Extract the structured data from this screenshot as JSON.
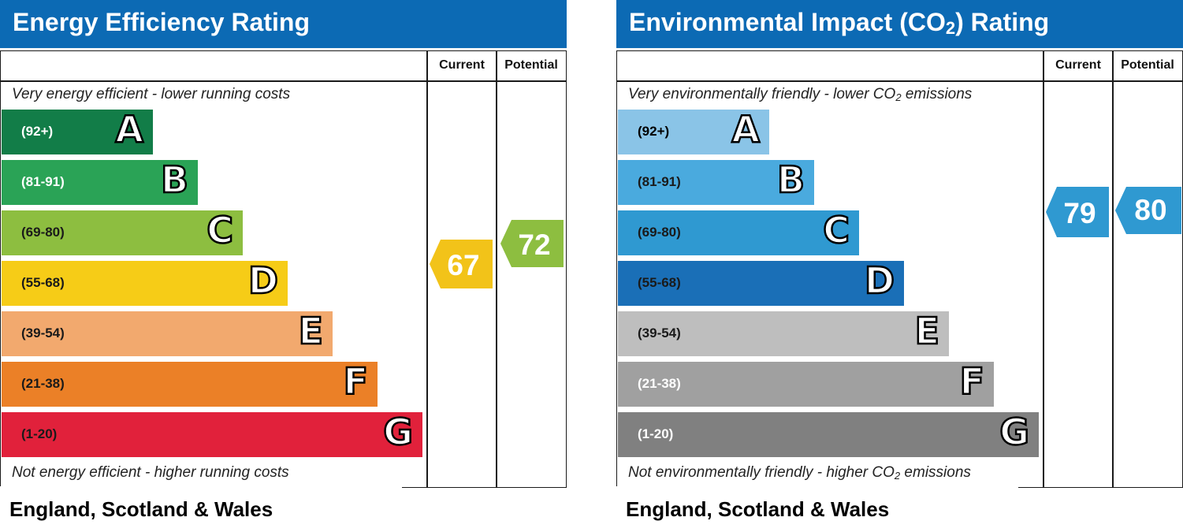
{
  "charts": [
    {
      "id": "energy",
      "title": "Energy Efficiency Rating",
      "title_sub": "",
      "title_end": "",
      "col_current": "Current",
      "col_potential": "Potential",
      "top_caption": {
        "text": "Very energy efficient - lower running costs",
        "sub": "",
        "end": ""
      },
      "bottom_caption": {
        "text": "Not energy efficient - higher running costs",
        "sub": "",
        "end": ""
      },
      "region": "England, Scotland & Wales",
      "current": {
        "value": "67",
        "color": "#f2c319"
      },
      "potential": {
        "value": "72",
        "color": "#8dbe40"
      },
      "bands": [
        {
          "range": "(92+)",
          "letter": "A",
          "min": 92,
          "max": 100,
          "color": "#127d48",
          "text_color": "#ffffff"
        },
        {
          "range": "(81-91)",
          "letter": "B",
          "min": 81,
          "max": 91,
          "color": "#2aa356",
          "text_color": "#ffffff"
        },
        {
          "range": "(69-80)",
          "letter": "C",
          "min": 69,
          "max": 80,
          "color": "#8dbe40",
          "text_color": "#1a1a1a"
        },
        {
          "range": "(55-68)",
          "letter": "D",
          "min": 55,
          "max": 68,
          "color": "#f6cc17",
          "text_color": "#1a1a1a"
        },
        {
          "range": "(39-54)",
          "letter": "E",
          "min": 39,
          "max": 54,
          "color": "#f2a96e",
          "text_color": "#1a1a1a"
        },
        {
          "range": "(21-38)",
          "letter": "F",
          "min": 21,
          "max": 38,
          "color": "#eb8027",
          "text_color": "#1a1a1a"
        },
        {
          "range": "(1-20)",
          "letter": "G",
          "min": 1,
          "max": 20,
          "color": "#e1213b",
          "text_color": "#1a1a1a"
        }
      ]
    },
    {
      "id": "env",
      "title": "Environmental Impact (CO",
      "title_sub": "2",
      "title_end": ") Rating",
      "col_current": "Current",
      "col_potential": "Potential",
      "top_caption": {
        "text": "Very environmentally friendly - lower CO",
        "sub": "2",
        "end": " emissions"
      },
      "bottom_caption": {
        "text": "Not environmentally friendly - higher CO",
        "sub": "2",
        "end": " emissions"
      },
      "region": "England, Scotland & Wales",
      "current": {
        "value": "79",
        "color": "#2f99d1"
      },
      "potential": {
        "value": "80",
        "color": "#2f99d1"
      },
      "bands": [
        {
          "range": "(92+)",
          "letter": "A",
          "min": 92,
          "max": 100,
          "color": "#8ac4e7",
          "text_color": "#000000"
        },
        {
          "range": "(81-91)",
          "letter": "B",
          "min": 81,
          "max": 91,
          "color": "#4aaade",
          "text_color": "#1a1a1a"
        },
        {
          "range": "(69-80)",
          "letter": "C",
          "min": 69,
          "max": 80,
          "color": "#2f99d1",
          "text_color": "#1a1a1a"
        },
        {
          "range": "(55-68)",
          "letter": "D",
          "min": 55,
          "max": 68,
          "color": "#1a6fb7",
          "text_color": "#1a1a1a"
        },
        {
          "range": "(39-54)",
          "letter": "E",
          "min": 39,
          "max": 54,
          "color": "#bebebe",
          "text_color": "#1a1a1a"
        },
        {
          "range": "(21-38)",
          "letter": "F",
          "min": 21,
          "max": 38,
          "color": "#a0a0a0",
          "text_color": "#ffffff"
        },
        {
          "range": "(1-20)",
          "letter": "G",
          "min": 1,
          "max": 20,
          "color": "#808080",
          "text_color": "#ffffff"
        }
      ]
    }
  ],
  "chart_data": [
    {
      "type": "bar",
      "title": "Energy Efficiency Rating",
      "categories": [
        "A",
        "B",
        "C",
        "D",
        "E",
        "F",
        "G"
      ],
      "ranges": [
        "(92+)",
        "(81-91)",
        "(69-80)",
        "(55-68)",
        "(39-54)",
        "(21-38)",
        "(1-20)"
      ],
      "current": 67,
      "potential": 72
    },
    {
      "type": "bar",
      "title": "Environmental Impact (CO2) Rating",
      "categories": [
        "A",
        "B",
        "C",
        "D",
        "E",
        "F",
        "G"
      ],
      "ranges": [
        "(92+)",
        "(81-91)",
        "(69-80)",
        "(55-68)",
        "(39-54)",
        "(21-38)",
        "(1-20)"
      ],
      "current": 79,
      "potential": 80
    }
  ]
}
